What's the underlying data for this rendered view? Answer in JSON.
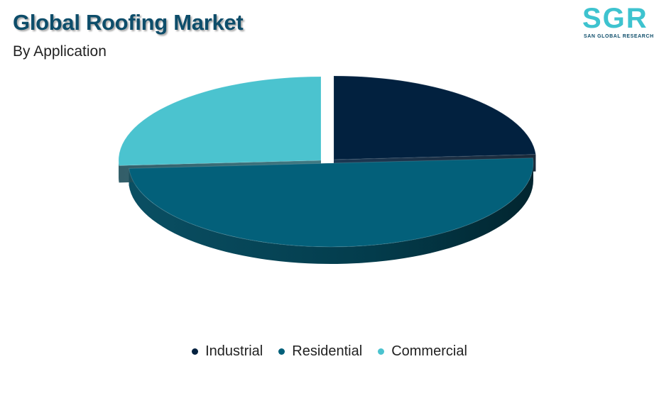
{
  "header": {
    "title": "Global Roofing Market",
    "subtitle": "By Application"
  },
  "logo": {
    "mark": "SGR",
    "tagline": "SAN GLOBAL RESEARCH"
  },
  "chart_data": {
    "type": "pie",
    "title": "Global Roofing Market",
    "subtitle": "By Application",
    "style": "3d-exploded",
    "legend_position": "bottom",
    "categories": [
      "Industrial",
      "Residential",
      "Commercial"
    ],
    "values": [
      24,
      50,
      26
    ],
    "colors": [
      "#02213f",
      "#03607a",
      "#4bc3cf"
    ]
  }
}
